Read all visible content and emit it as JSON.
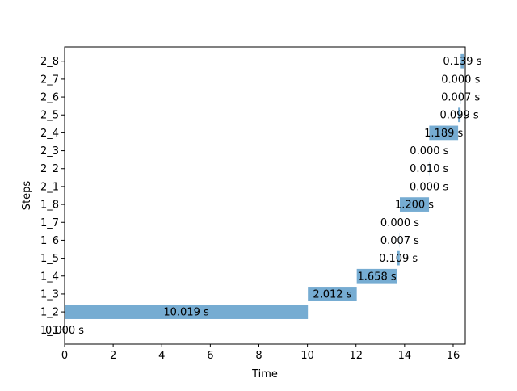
{
  "chart_data": {
    "type": "bar",
    "orientation": "horizontal-gantt",
    "xlabel": "Time",
    "ylabel": "Steps",
    "xlim": [
      0,
      16.5
    ],
    "x_ticks": [
      0,
      2,
      4,
      6,
      8,
      10,
      12,
      14,
      16
    ],
    "grid": false,
    "legend": "none",
    "bar_color": "#76acd2",
    "categories": [
      "1_1",
      "1_2",
      "1_3",
      "1_4",
      "1_5",
      "1_6",
      "1_7",
      "1_8",
      "2_1",
      "2_2",
      "2_3",
      "2_4",
      "2_5",
      "2_6",
      "2_7",
      "2_8"
    ],
    "starts": [
      0.0,
      0.0,
      10.019,
      12.031,
      13.689,
      13.798,
      13.805,
      13.805,
      15.005,
      15.005,
      15.015,
      15.015,
      16.204,
      16.303,
      16.31,
      16.31
    ],
    "values": [
      0.0,
      10.019,
      2.012,
      1.658,
      0.109,
      0.007,
      0.0,
      1.2,
      0.0,
      0.01,
      0.0,
      1.189,
      0.099,
      0.007,
      0.0,
      0.139
    ],
    "labels": [
      "0.000 s",
      "10.019 s",
      "2.012 s",
      "1.658 s",
      "0.109 s",
      "0.007 s",
      "0.000 s",
      "1.200 s",
      "0.000 s",
      "0.010 s",
      "0.000 s",
      "1.189 s",
      "0.099 s",
      "0.007 s",
      "0.000 s",
      "0.139 s"
    ]
  }
}
